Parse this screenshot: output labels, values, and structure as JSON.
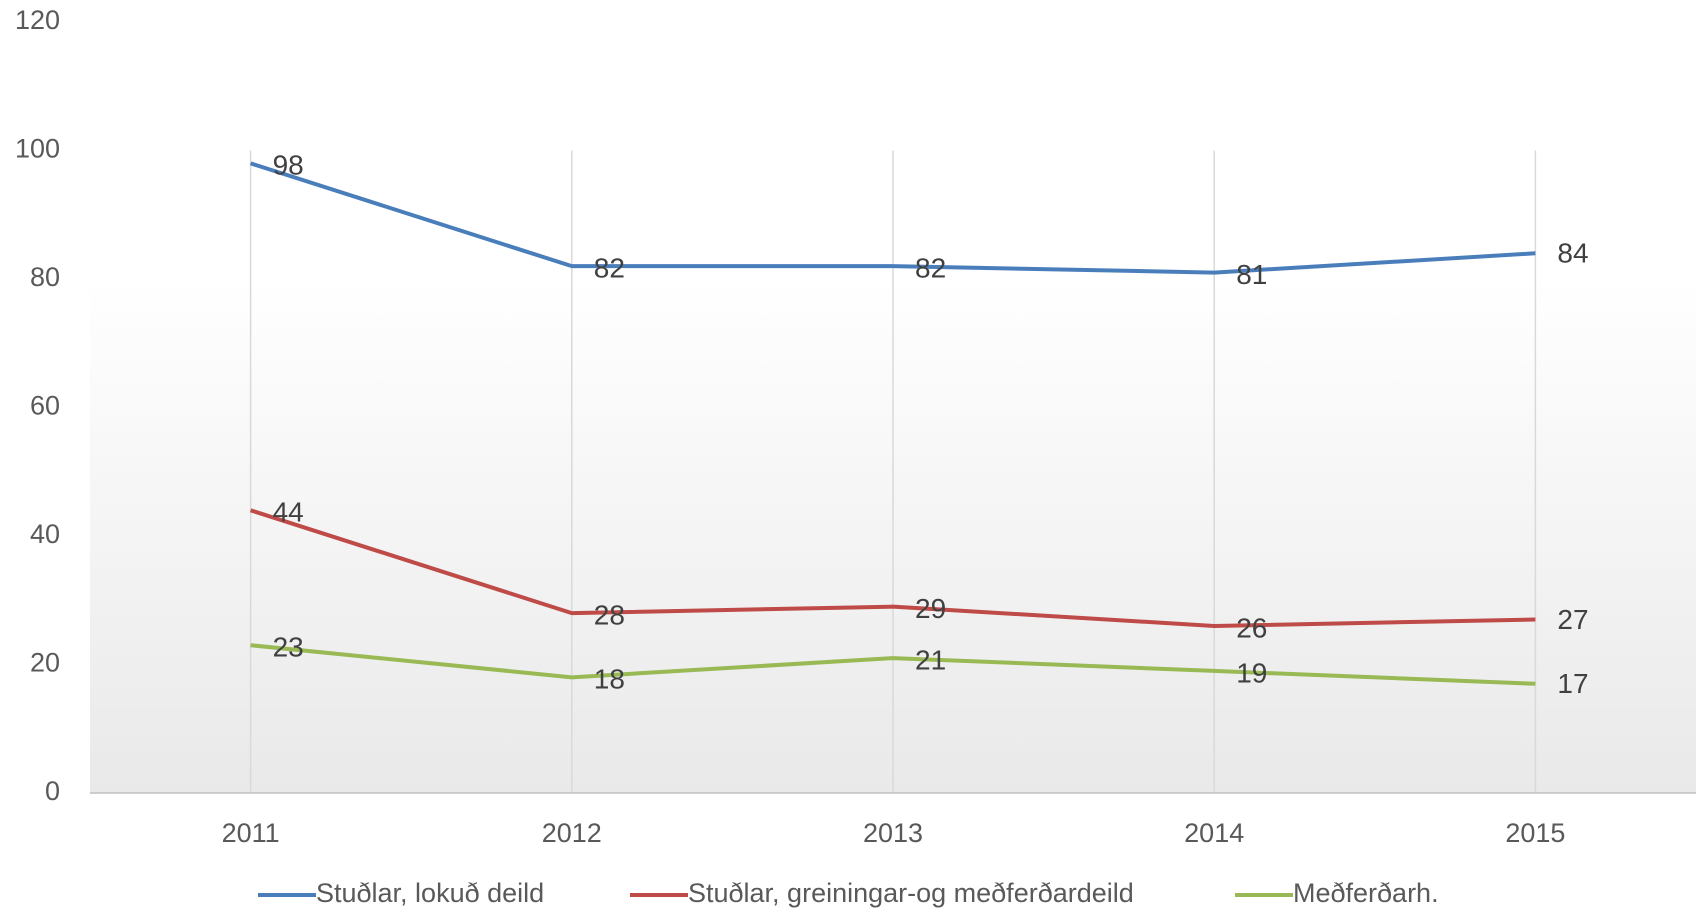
{
  "chart_data": {
    "type": "line",
    "categories": [
      "2011",
      "2012",
      "2013",
      "2014",
      "2015"
    ],
    "series": [
      {
        "name": "Stuðlar, lokuð deild",
        "color": "#4a7ebb",
        "values": [
          98,
          82,
          82,
          81,
          84
        ]
      },
      {
        "name": "Stuðlar, greiningar-og meðferðardeild",
        "color": "#be4b48",
        "values": [
          44,
          28,
          29,
          26,
          27
        ]
      },
      {
        "name": "Meðferðarh.",
        "color": "#98b954",
        "values": [
          23,
          18,
          21,
          19,
          17
        ]
      }
    ],
    "ylim": [
      0,
      120
    ],
    "yticks": [
      0,
      20,
      40,
      60,
      80,
      100,
      120
    ],
    "grid": "x",
    "legend": "bottom"
  }
}
